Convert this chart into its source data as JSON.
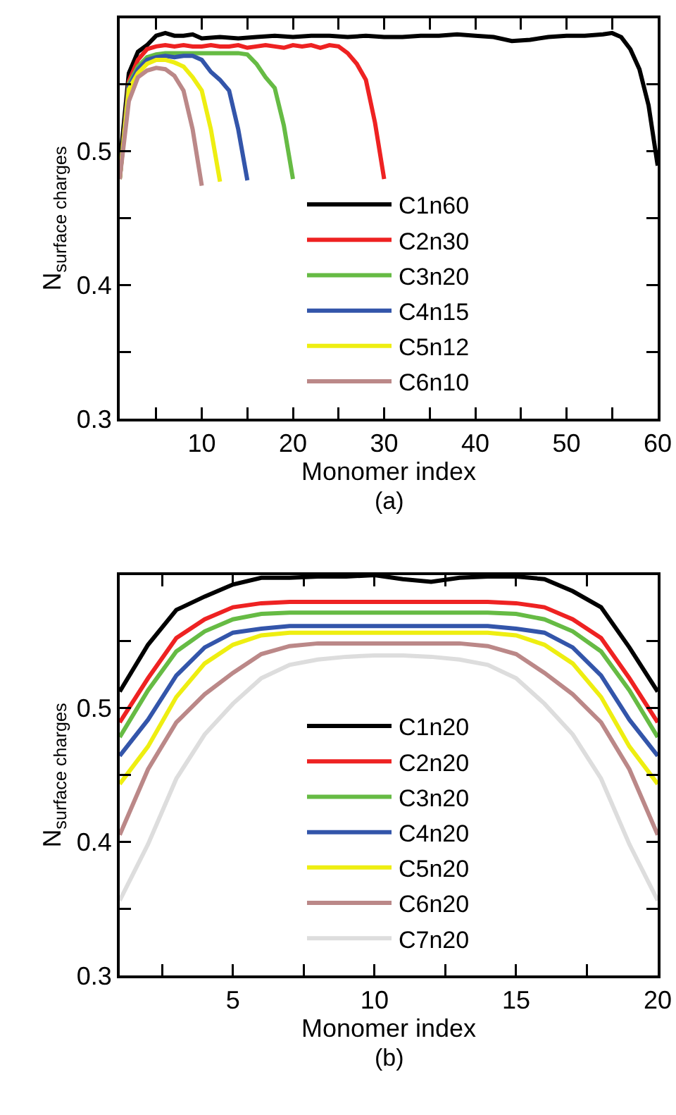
{
  "chart_data": [
    {
      "type": "line",
      "xlabel": "Monomer index",
      "ylabel": "N$_{surface charges}$",
      "annotations": [
        "(a)"
      ],
      "xlim": [
        1,
        60
      ],
      "ylim": [
        0.3,
        0.599
      ],
      "xticks": [
        {
          "value": 5,
          "label": null
        },
        10,
        {
          "value": 15,
          "label": null
        },
        20,
        {
          "value": 25,
          "label": null
        },
        30,
        {
          "value": 35,
          "label": null
        },
        40,
        {
          "value": 45,
          "label": null
        },
        50,
        {
          "value": 55,
          "label": null
        },
        60
      ],
      "yticks": [
        0.3,
        {
          "value": 0.35,
          "label": null
        },
        0.4,
        {
          "value": 0.45,
          "label": null
        },
        0.5,
        {
          "value": 0.55,
          "label": null
        }
      ],
      "grid": false,
      "legend": "bottom",
      "marker": "none",
      "line_style": "solid",
      "series": [
        {
          "name": "C1n60",
          "color": "#000000",
          "x": [
            1,
            2,
            3,
            4,
            5,
            6,
            7,
            8,
            9,
            10,
            12,
            14,
            16,
            18,
            20,
            22,
            24,
            26,
            28,
            30,
            32,
            34,
            36,
            38,
            40,
            42,
            44,
            46,
            48,
            50,
            52,
            54,
            55,
            56,
            57,
            58,
            59,
            60
          ],
          "values": [
            0.489,
            0.558,
            0.574,
            0.579,
            0.586,
            0.588,
            0.586,
            0.586,
            0.587,
            0.584,
            0.585,
            0.584,
            0.585,
            0.586,
            0.585,
            0.586,
            0.586,
            0.585,
            0.586,
            0.585,
            0.585,
            0.586,
            0.586,
            0.587,
            0.586,
            0.585,
            0.582,
            0.583,
            0.585,
            0.586,
            0.586,
            0.587,
            0.588,
            0.585,
            0.576,
            0.561,
            0.534,
            0.489
          ]
        },
        {
          "name": "C2n30",
          "color": "#ee2222",
          "x": [
            1,
            2,
            3,
            4,
            5,
            6,
            7,
            8,
            9,
            10,
            11,
            12,
            13,
            14,
            15,
            16,
            17,
            18,
            19,
            20,
            21,
            22,
            23,
            24,
            25,
            26,
            27,
            28,
            29,
            30
          ],
          "values": [
            0.479,
            0.552,
            0.568,
            0.576,
            0.578,
            0.579,
            0.578,
            0.579,
            0.578,
            0.578,
            0.579,
            0.578,
            0.578,
            0.579,
            0.577,
            0.578,
            0.579,
            0.578,
            0.577,
            0.579,
            0.578,
            0.579,
            0.577,
            0.579,
            0.578,
            0.573,
            0.565,
            0.553,
            0.521,
            0.479
          ]
        },
        {
          "name": "C3n20",
          "color": "#66bb44",
          "x": [
            1,
            2,
            3,
            4,
            5,
            6,
            7,
            8,
            9,
            10,
            11,
            12,
            13,
            14,
            15,
            16,
            17,
            18,
            19,
            20
          ],
          "values": [
            0.479,
            0.55,
            0.563,
            0.57,
            0.572,
            0.573,
            0.573,
            0.573,
            0.573,
            0.573,
            0.573,
            0.573,
            0.573,
            0.573,
            0.572,
            0.565,
            0.555,
            0.547,
            0.519,
            0.479
          ]
        },
        {
          "name": "C4n15",
          "color": "#3355aa",
          "x": [
            1,
            2,
            3,
            4,
            5,
            6,
            7,
            8,
            9,
            10,
            11,
            12,
            13,
            14,
            15
          ],
          "values": [
            0.479,
            0.548,
            0.561,
            0.568,
            0.57,
            0.571,
            0.57,
            0.571,
            0.571,
            0.568,
            0.559,
            0.553,
            0.545,
            0.516,
            0.478
          ]
        },
        {
          "name": "C5n12",
          "color": "#eeee11",
          "x": [
            1,
            2,
            3,
            4,
            5,
            6,
            7,
            8,
            9,
            10,
            11,
            12
          ],
          "values": [
            0.479,
            0.546,
            0.558,
            0.565,
            0.568,
            0.568,
            0.566,
            0.563,
            0.555,
            0.545,
            0.516,
            0.477
          ]
        },
        {
          "name": "C6n10",
          "color": "#bb8888",
          "x": [
            1,
            2,
            3,
            4,
            5,
            6,
            7,
            8,
            9,
            10
          ],
          "values": [
            0.479,
            0.537,
            0.555,
            0.56,
            0.562,
            0.561,
            0.556,
            0.545,
            0.516,
            0.474
          ]
        }
      ]
    },
    {
      "type": "line",
      "xlabel": "Monomer index",
      "ylabel": "N$_{surface charges}$",
      "annotations": [
        "(b)"
      ],
      "xlim": [
        1,
        20
      ],
      "ylim": [
        0.3,
        0.599
      ],
      "xticks": [
        {
          "value": 2.5,
          "label": null
        },
        5,
        {
          "value": 7.5,
          "label": null
        },
        10,
        {
          "value": 12.5,
          "label": null
        },
        15,
        {
          "value": 17.5,
          "label": null
        },
        20
      ],
      "yticks": [
        0.3,
        {
          "value": 0.35,
          "label": null
        },
        0.4,
        {
          "value": 0.45,
          "label": null
        },
        0.5,
        {
          "value": 0.55,
          "label": null
        }
      ],
      "grid": false,
      "legend": "bottom",
      "marker": "none",
      "line_style": "solid",
      "x": [
        1,
        2,
        3,
        4,
        5,
        6,
        7,
        8,
        9,
        10,
        11,
        12,
        13,
        14,
        15,
        16,
        17,
        18,
        19,
        20
      ],
      "series": [
        {
          "name": "C1n20",
          "color": "#000000",
          "values": [
            0.512,
            0.547,
            0.573,
            0.583,
            0.592,
            0.597,
            0.597,
            0.598,
            0.598,
            0.599,
            0.596,
            0.594,
            0.597,
            0.598,
            0.598,
            0.596,
            0.587,
            0.575,
            0.545,
            0.512
          ]
        },
        {
          "name": "C2n20",
          "color": "#ee2222",
          "values": [
            0.489,
            0.522,
            0.552,
            0.566,
            0.575,
            0.578,
            0.579,
            0.579,
            0.579,
            0.579,
            0.579,
            0.579,
            0.579,
            0.579,
            0.578,
            0.575,
            0.566,
            0.552,
            0.522,
            0.489
          ]
        },
        {
          "name": "C3n20",
          "color": "#66bb44",
          "values": [
            0.478,
            0.513,
            0.542,
            0.557,
            0.566,
            0.57,
            0.571,
            0.571,
            0.571,
            0.571,
            0.571,
            0.571,
            0.571,
            0.571,
            0.57,
            0.566,
            0.557,
            0.542,
            0.513,
            0.478
          ]
        },
        {
          "name": "C4n20",
          "color": "#3355aa",
          "values": [
            0.464,
            0.491,
            0.524,
            0.545,
            0.556,
            0.559,
            0.561,
            0.561,
            0.561,
            0.561,
            0.561,
            0.561,
            0.561,
            0.561,
            0.559,
            0.556,
            0.545,
            0.524,
            0.491,
            0.464
          ]
        },
        {
          "name": "C5n20",
          "color": "#eeee11",
          "values": [
            0.443,
            0.471,
            0.508,
            0.533,
            0.547,
            0.554,
            0.556,
            0.556,
            0.556,
            0.556,
            0.556,
            0.556,
            0.556,
            0.556,
            0.554,
            0.547,
            0.533,
            0.508,
            0.471,
            0.443
          ]
        },
        {
          "name": "C6n20",
          "color": "#bb8888",
          "values": [
            0.405,
            0.454,
            0.489,
            0.51,
            0.526,
            0.54,
            0.546,
            0.548,
            0.548,
            0.548,
            0.548,
            0.548,
            0.548,
            0.546,
            0.54,
            0.526,
            0.51,
            0.489,
            0.454,
            0.405
          ]
        },
        {
          "name": "C7n20",
          "color": "#dddddd",
          "values": [
            0.356,
            0.398,
            0.447,
            0.48,
            0.503,
            0.522,
            0.532,
            0.536,
            0.538,
            0.539,
            0.539,
            0.538,
            0.536,
            0.532,
            0.522,
            0.503,
            0.48,
            0.447,
            0.398,
            0.356
          ]
        }
      ]
    }
  ]
}
